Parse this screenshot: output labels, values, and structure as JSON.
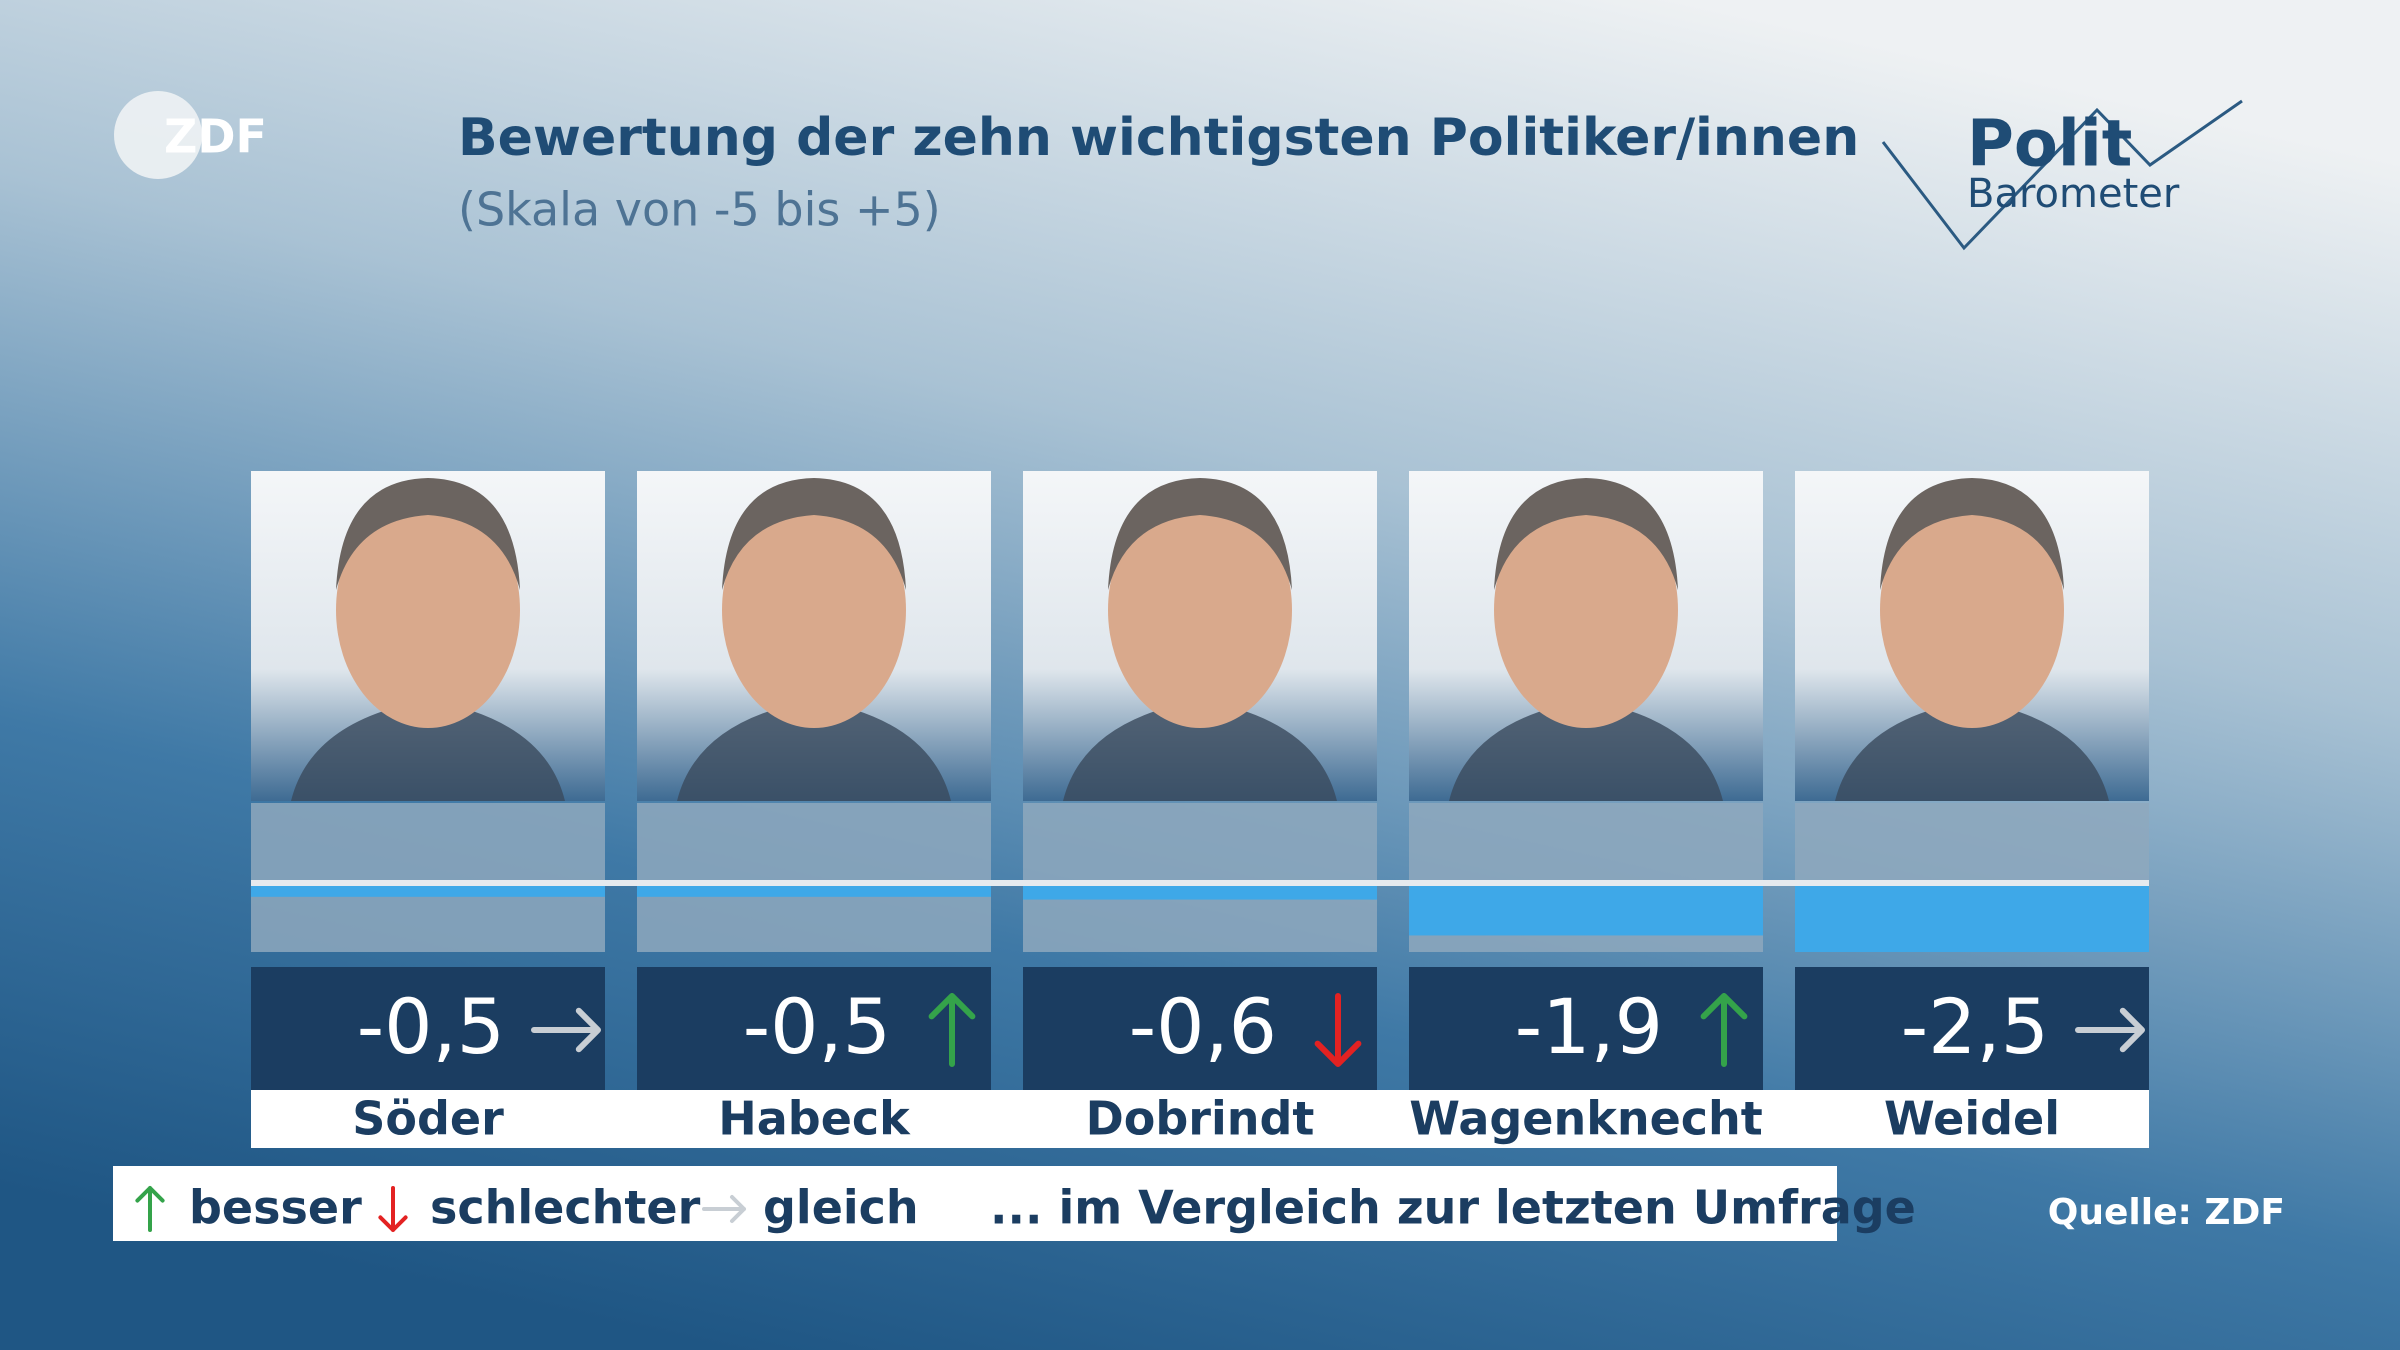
{
  "header": {
    "logo": "ZDF",
    "brand_1": "Polit",
    "brand_2": "Barometer",
    "source": "Quelle: ZDF"
  },
  "chart_data": {
    "type": "bar",
    "title": "Bewertung der zehn wichtigsten Politiker/innen",
    "subtitle": "(Skala von -5 bis +5)",
    "categories": [
      "Söder",
      "Habeck",
      "Dobrindt",
      "Wagenknecht",
      "Weidel"
    ],
    "values": [
      -0.5,
      -0.5,
      -0.6,
      -1.9,
      -2.5
    ],
    "value_labels": [
      "-0,5",
      "-0,5",
      "-0,6",
      "-1,9",
      "-2,5"
    ],
    "trends": [
      "same",
      "up",
      "down",
      "up",
      "same"
    ],
    "trend_colors": {
      "up": "#34a34a",
      "down": "#e32222",
      "same": "#c8ced4"
    },
    "color": "#3ea8e8",
    "ylim": [
      -2.5,
      2.9
    ],
    "legend": {
      "up": "besser",
      "down": "schlechter",
      "same": "gleich",
      "note": "... im Vergleich zur letzten Umfrage"
    }
  }
}
